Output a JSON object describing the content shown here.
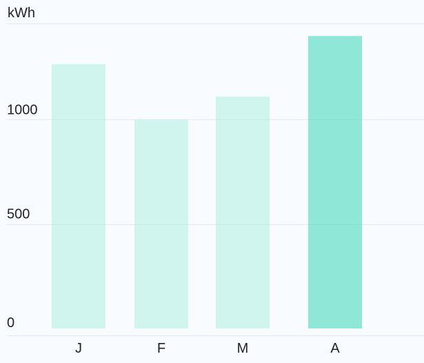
{
  "chart_data": {
    "type": "bar",
    "ylabel": "kWh",
    "categories": [
      "J",
      "F",
      "M",
      "A"
    ],
    "values": [
      1265,
      1000,
      1110,
      1400
    ],
    "ylim": [
      0,
      1460
    ],
    "yticks": [
      0,
      500,
      1000
    ],
    "grid": true,
    "highlight_index": 3
  },
  "colors": {
    "bar": "#aef0e1",
    "bar_highlight": "#26d3b0",
    "grid": "#e4e8ee",
    "background": "#f8fbff"
  }
}
